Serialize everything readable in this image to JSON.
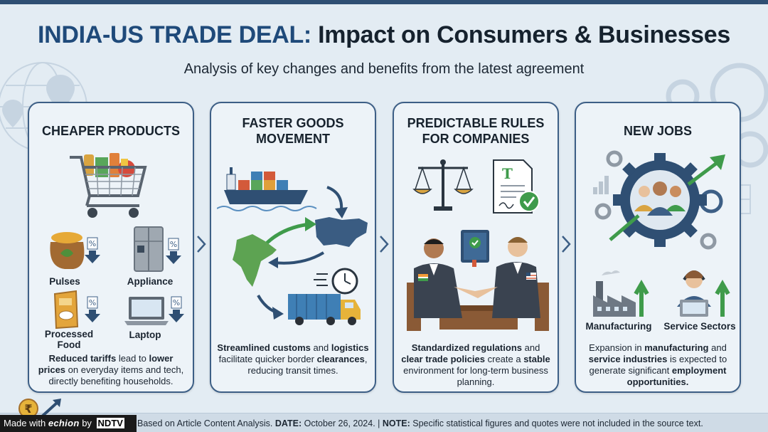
{
  "header": {
    "title_highlight": "INDIA-US TRADE DEAL:",
    "title_rest": " Impact on Consumers & Businesses",
    "subtitle": "Analysis of key changes and benefits from the latest agreement"
  },
  "colors": {
    "accent": "#1f4a7a",
    "card_border": "#3d5f86",
    "background": "#e3ecf3",
    "green": "#3f9b4b"
  },
  "cards": [
    {
      "title": "CHEAPER PRODUCTS",
      "items": [
        {
          "label": "Pulses",
          "icon": "pulses-sack-icon"
        },
        {
          "label": "Appliance",
          "icon": "refrigerator-icon"
        },
        {
          "label": "Processed Food",
          "icon": "cereal-box-icon"
        },
        {
          "label": "Laptop",
          "icon": "laptop-icon"
        }
      ],
      "desc_b1": "Reduced tariffs",
      "desc_t1": " lead to ",
      "desc_b2": "lower prices",
      "desc_t2": " on everyday items and tech, directly benefiting households."
    },
    {
      "title": "FASTER GOODS MOVEMENT",
      "desc_b1": "Streamlined customs",
      "desc_t1": " and ",
      "desc_b2": "logistics",
      "desc_t2": " facilitate quicker border ",
      "desc_b3": "clearances",
      "desc_t3": ", reducing transit times."
    },
    {
      "title": "PREDICTABLE RULES FOR COMPANIES",
      "desc_b1": "Standardized regulations",
      "desc_t1": " and ",
      "desc_b2": "clear trade policies",
      "desc_t2": " create a ",
      "desc_b3": "stable",
      "desc_t3": " environment for long-term business planning."
    },
    {
      "title": "NEW JOBS",
      "items": [
        {
          "label": "Manufacturing",
          "icon": "factory-icon"
        },
        {
          "label": "Service Sectors",
          "icon": "headset-worker-icon"
        }
      ],
      "desc_t0": "Expansion in ",
      "desc_b1": "manufacturing",
      "desc_t1": " and ",
      "desc_b2": "service industries",
      "desc_t2": " is expected to generate significant ",
      "desc_b3": "employment opportunities."
    }
  ],
  "footer": {
    "source_rest": "Based on Article Content Analysis. ",
    "date_label": "DATE:",
    "date_value": " October 26, 2024. | ",
    "note_label": "NOTE:",
    "note_value": " Specific statistical figures and quotes were not included in the source text."
  },
  "badge": {
    "made_with": "Made with ",
    "brand": "echion",
    "by": " by ",
    "network": "NDTV"
  }
}
